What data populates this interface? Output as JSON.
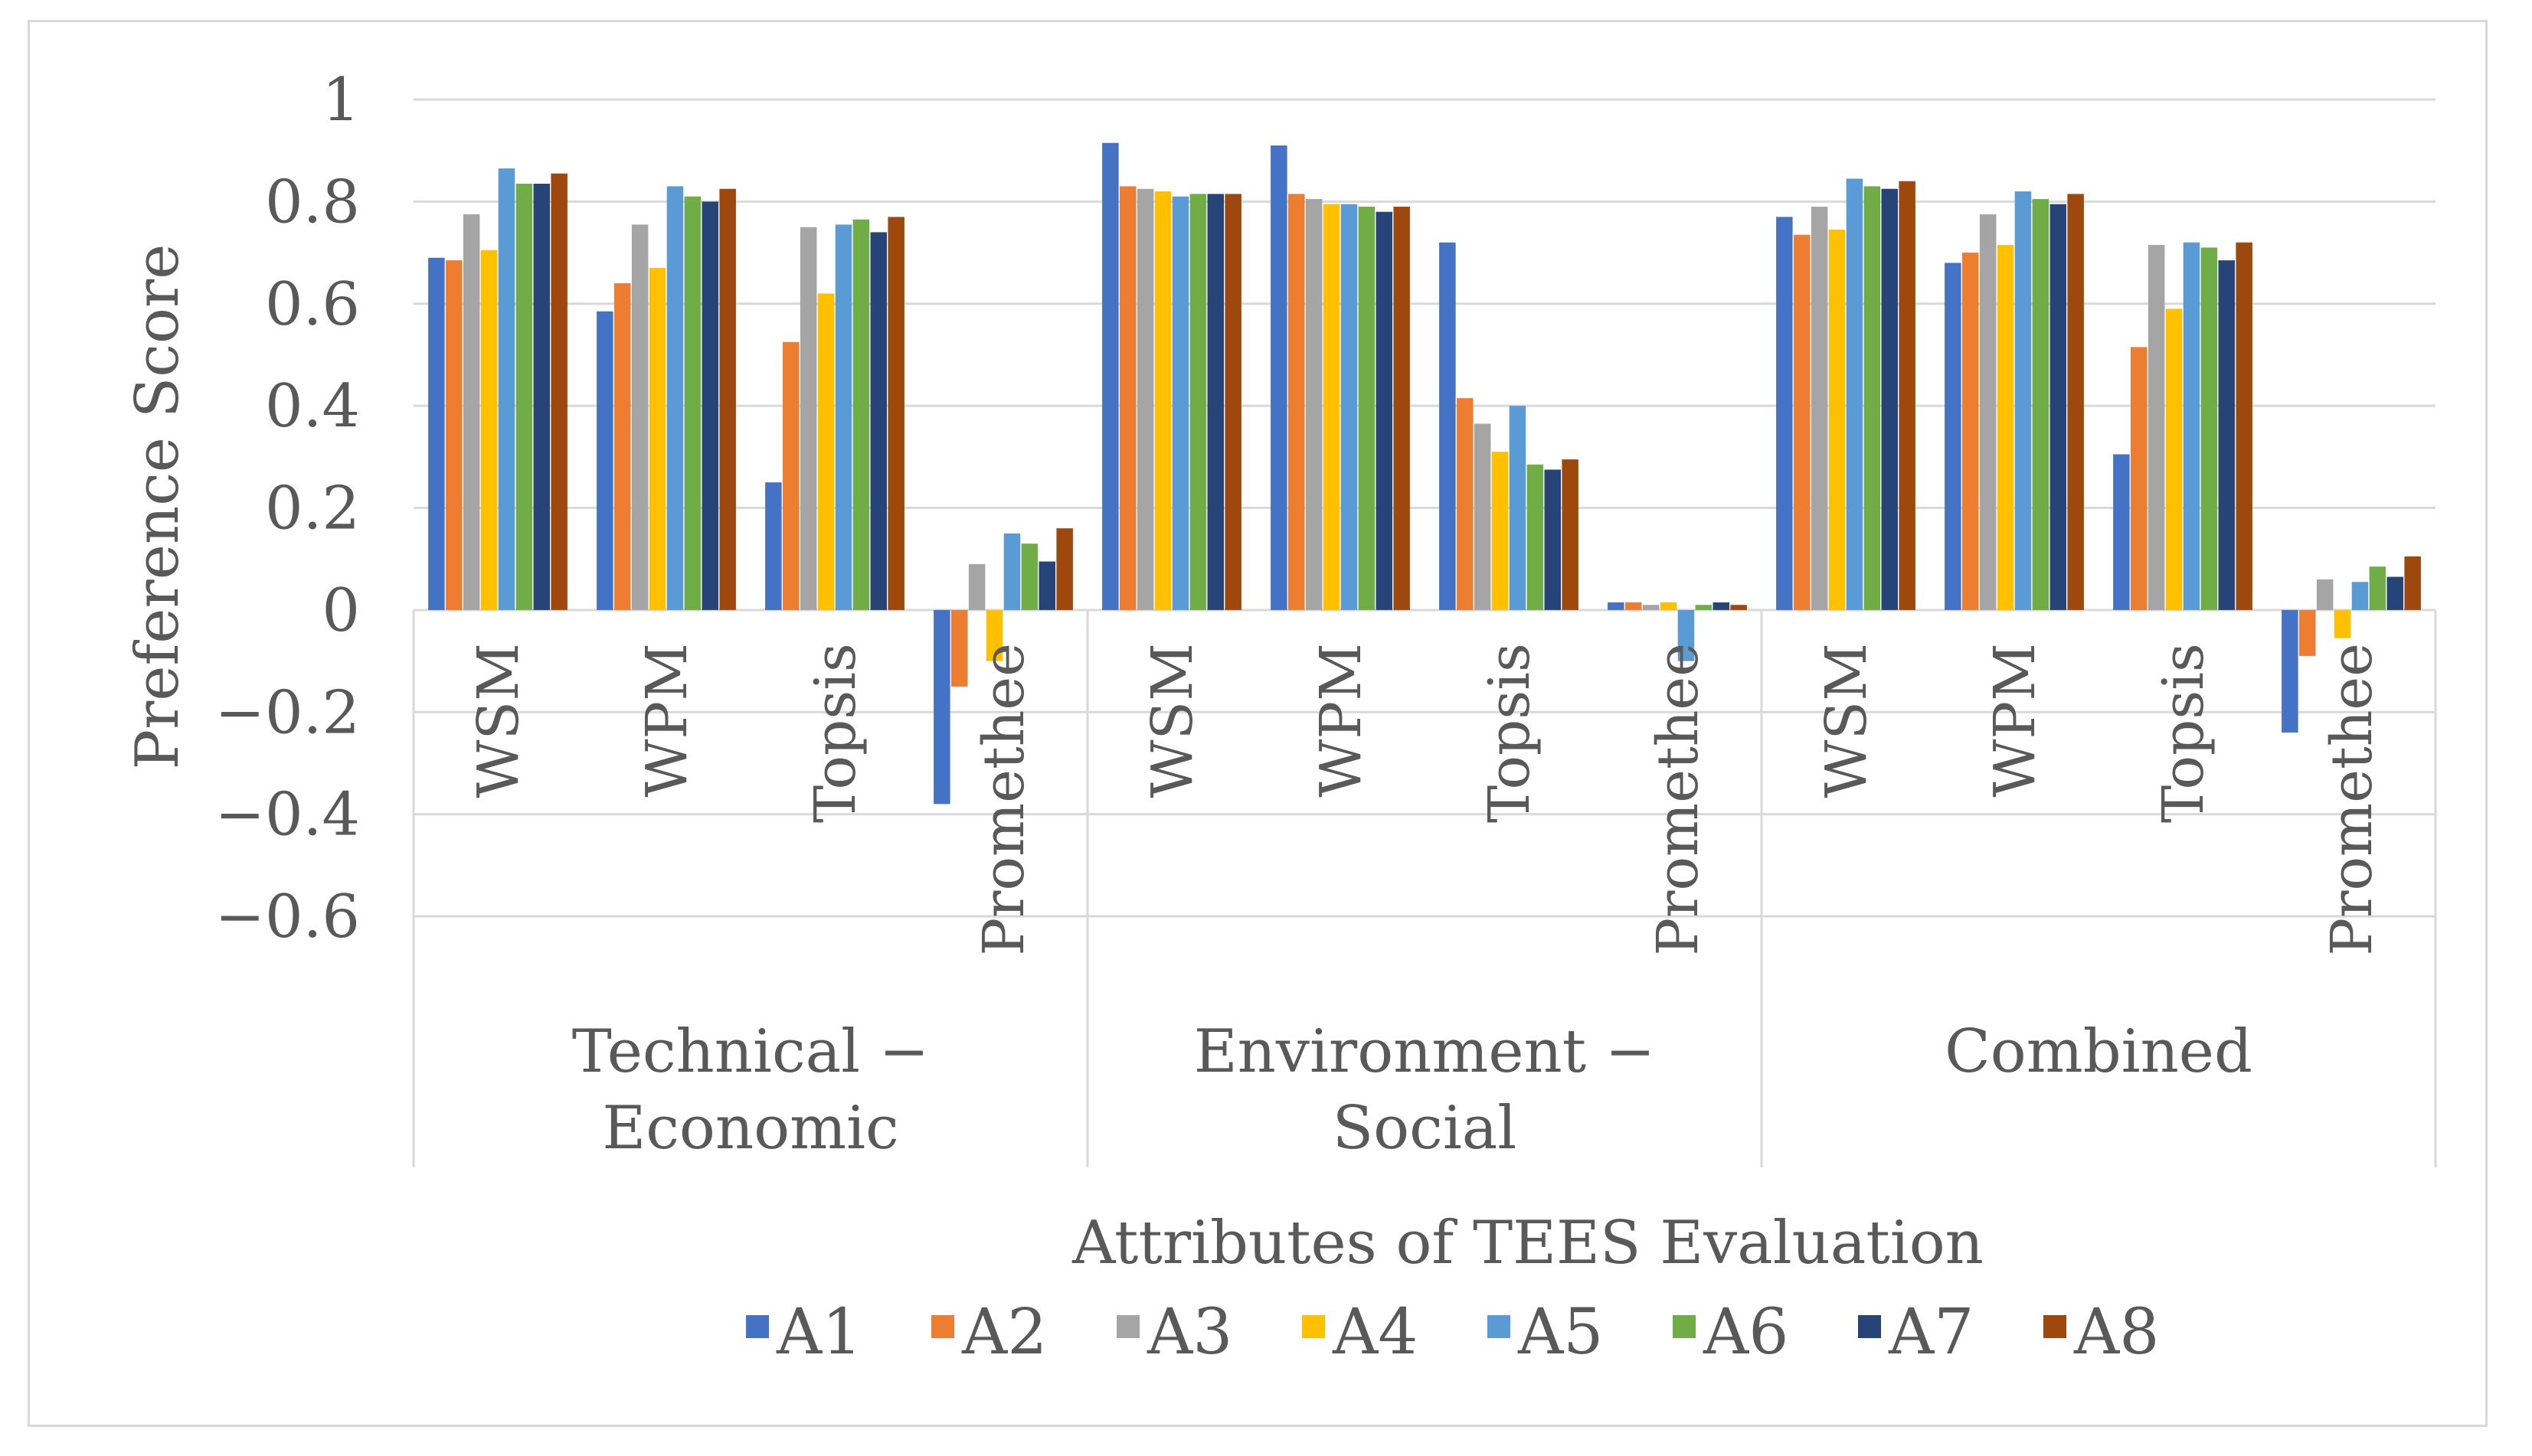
{
  "chart_data": {
    "type": "bar",
    "title": "",
    "xlabel": "Attributes of TEES Evaluation",
    "ylabel": "Preference Score",
    "ylim": [
      -0.6,
      1
    ],
    "yticks": [
      1,
      0.8,
      0.6,
      0.4,
      0.2,
      0,
      -0.2,
      -0.4,
      -0.6
    ],
    "ytick_labels": [
      "1",
      "0.8",
      "0.6",
      "0.4",
      "0.2",
      "0",
      "−0.2",
      "−0.4",
      "−0.6"
    ],
    "grid": true,
    "legend_position": "bottom",
    "groups": [
      {
        "lines": [
          "Technical −",
          "Economic"
        ],
        "categories": [
          "WSM",
          "WPM",
          "Topsis",
          "Promethee"
        ]
      },
      {
        "lines": [
          "Environment −",
          "Social"
        ],
        "categories": [
          "WSM",
          "WPM",
          "Topsis",
          "Promethee"
        ]
      },
      {
        "lines": [
          "Combined"
        ],
        "categories": [
          "WSM",
          "WPM",
          "Topsis",
          "Promethee"
        ]
      }
    ],
    "series": [
      {
        "name": "A1",
        "color": "#4472c4",
        "values": [
          0.69,
          0.585,
          0.25,
          -0.38,
          0.915,
          0.91,
          0.72,
          0.015,
          0.77,
          0.68,
          0.305,
          -0.24
        ]
      },
      {
        "name": "A2",
        "color": "#ed7d31",
        "values": [
          0.685,
          0.64,
          0.525,
          -0.15,
          0.83,
          0.815,
          0.415,
          0.015,
          0.735,
          0.7,
          0.515,
          -0.09
        ]
      },
      {
        "name": "A3",
        "color": "#a5a5a5",
        "values": [
          0.775,
          0.755,
          0.75,
          0.09,
          0.825,
          0.805,
          0.365,
          0.01,
          0.79,
          0.775,
          0.715,
          0.06
        ]
      },
      {
        "name": "A4",
        "color": "#ffc000",
        "values": [
          0.705,
          0.67,
          0.62,
          -0.1,
          0.82,
          0.795,
          0.31,
          0.015,
          0.745,
          0.715,
          0.59,
          -0.055
        ]
      },
      {
        "name": "A5",
        "color": "#5b9bd5",
        "values": [
          0.865,
          0.83,
          0.755,
          0.15,
          0.81,
          0.795,
          0.4,
          -0.1,
          0.845,
          0.82,
          0.72,
          0.055
        ]
      },
      {
        "name": "A6",
        "color": "#70ad47",
        "values": [
          0.835,
          0.81,
          0.765,
          0.13,
          0.815,
          0.79,
          0.285,
          0.01,
          0.83,
          0.805,
          0.71,
          0.085
        ]
      },
      {
        "name": "A7",
        "color": "#264478",
        "values": [
          0.835,
          0.8,
          0.74,
          0.095,
          0.815,
          0.78,
          0.275,
          0.015,
          0.825,
          0.795,
          0.685,
          0.065
        ]
      },
      {
        "name": "A8",
        "color": "#9e480e",
        "values": [
          0.855,
          0.825,
          0.77,
          0.16,
          0.815,
          0.79,
          0.295,
          0.01,
          0.84,
          0.815,
          0.72,
          0.105
        ]
      }
    ]
  }
}
